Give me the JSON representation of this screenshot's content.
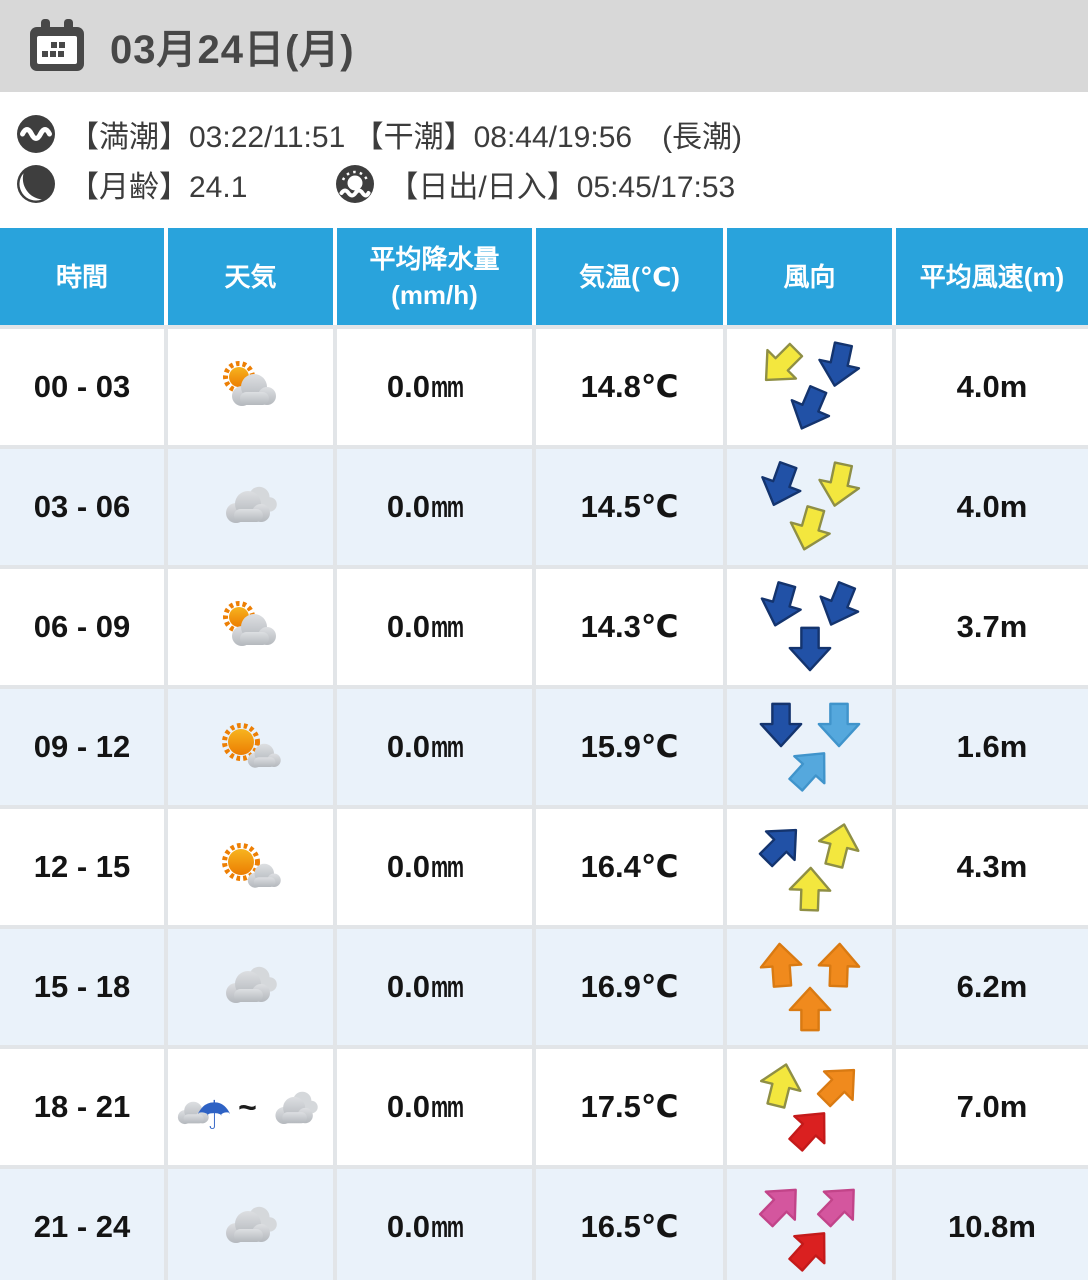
{
  "header": {
    "date_label": "03月24日(月)"
  },
  "info": {
    "tide_text": "【満潮】03:22/11:51 【干潮】08:44/19:56　(長潮)",
    "moon_text": "【月齢】24.1",
    "sun_text": "【日出/日入】05:45/17:53"
  },
  "icons": [
    "calendar-icon",
    "wave-icon",
    "moon-icon",
    "sunrise-icon"
  ],
  "theme": {
    "header_blue": "#29a3dc",
    "row_alt_bg": "#eaf2fa",
    "topbar_bg": "#d8d8d8",
    "title_color": "#474747",
    "info_text_color": "#3c3c3c",
    "cell_text_color": "#141414",
    "grid_line": "#e2e5e8"
  },
  "wind_colors": {
    "yellow": {
      "fill": "#f3e73e",
      "stroke": "#8f8f45"
    },
    "blue": {
      "fill": "#2151a6",
      "stroke": "#14346e"
    },
    "lightblue": {
      "fill": "#55a8dd",
      "stroke": "#4094cb"
    },
    "orange": {
      "fill": "#f08a1d",
      "stroke": "#d97a12"
    },
    "red": {
      "fill": "#da2020",
      "stroke": "#c41a1a"
    },
    "pink": {
      "fill": "#d4569e",
      "stroke": "#c24489"
    }
  },
  "table": {
    "columns": [
      {
        "label": "時間"
      },
      {
        "label": "天気"
      },
      {
        "label": "平均降水量",
        "sub": "(mm/h)"
      },
      {
        "label": "気温(℃)"
      },
      {
        "label": "風向"
      },
      {
        "label": "平均風速(m)"
      }
    ],
    "rows": [
      {
        "time": "00 - 03",
        "weather": "cloud-sun",
        "rain": "0.0",
        "rain_unit": "mm",
        "temp": "14.8℃",
        "wind_speed": "4.0m",
        "arrows": [
          {
            "deg": 225,
            "color": "yellow"
          },
          {
            "deg": 192,
            "color": "blue"
          },
          {
            "deg": 203,
            "color": "blue"
          }
        ]
      },
      {
        "time": "03 - 06",
        "weather": "cloudy",
        "rain": "0.0",
        "rain_unit": "mm",
        "temp": "14.5℃",
        "wind_speed": "4.0m",
        "arrows": [
          {
            "deg": 200,
            "color": "blue"
          },
          {
            "deg": 192,
            "color": "yellow"
          },
          {
            "deg": 196,
            "color": "yellow"
          }
        ]
      },
      {
        "time": "06 - 09",
        "weather": "cloud-sun",
        "rain": "0.0",
        "rain_unit": "mm",
        "temp": "14.3℃",
        "wind_speed": "3.7m",
        "arrows": [
          {
            "deg": 196,
            "color": "blue"
          },
          {
            "deg": 202,
            "color": "blue"
          },
          {
            "deg": 180,
            "color": "blue"
          }
        ]
      },
      {
        "time": "09 - 12",
        "weather": "sun-cloud",
        "rain": "0.0",
        "rain_unit": "mm",
        "temp": "15.9℃",
        "wind_speed": "1.6m",
        "arrows": [
          {
            "deg": 180,
            "color": "blue"
          },
          {
            "deg": 180,
            "color": "lightblue"
          },
          {
            "deg": 42,
            "color": "lightblue"
          }
        ]
      },
      {
        "time": "12 - 15",
        "weather": "sun-cloud",
        "rain": "0.0",
        "rain_unit": "mm",
        "temp": "16.4℃",
        "wind_speed": "4.3m",
        "arrows": [
          {
            "deg": 45,
            "color": "blue"
          },
          {
            "deg": 14,
            "color": "yellow"
          },
          {
            "deg": 2,
            "color": "yellow"
          }
        ]
      },
      {
        "time": "15 - 18",
        "weather": "cloudy",
        "rain": "0.0",
        "rain_unit": "mm",
        "temp": "16.9℃",
        "wind_speed": "6.2m",
        "arrows": [
          {
            "deg": 356,
            "color": "orange"
          },
          {
            "deg": 2,
            "color": "orange"
          },
          {
            "deg": 0,
            "color": "orange"
          }
        ]
      },
      {
        "time": "18 - 21",
        "weather": "umbrella-cloud",
        "weather_separator": "~",
        "rain": "0.0",
        "rain_unit": "mm",
        "temp": "17.5℃",
        "wind_speed": "7.0m",
        "arrows": [
          {
            "deg": 14,
            "color": "yellow"
          },
          {
            "deg": 45,
            "color": "orange"
          },
          {
            "deg": 42,
            "color": "red"
          }
        ]
      },
      {
        "time": "21 - 24",
        "weather": "cloudy",
        "rain": "0.0",
        "rain_unit": "mm",
        "temp": "16.5℃",
        "wind_speed": "10.8m",
        "arrows": [
          {
            "deg": 44,
            "color": "pink"
          },
          {
            "deg": 44,
            "color": "pink"
          },
          {
            "deg": 42,
            "color": "red"
          }
        ]
      }
    ]
  }
}
